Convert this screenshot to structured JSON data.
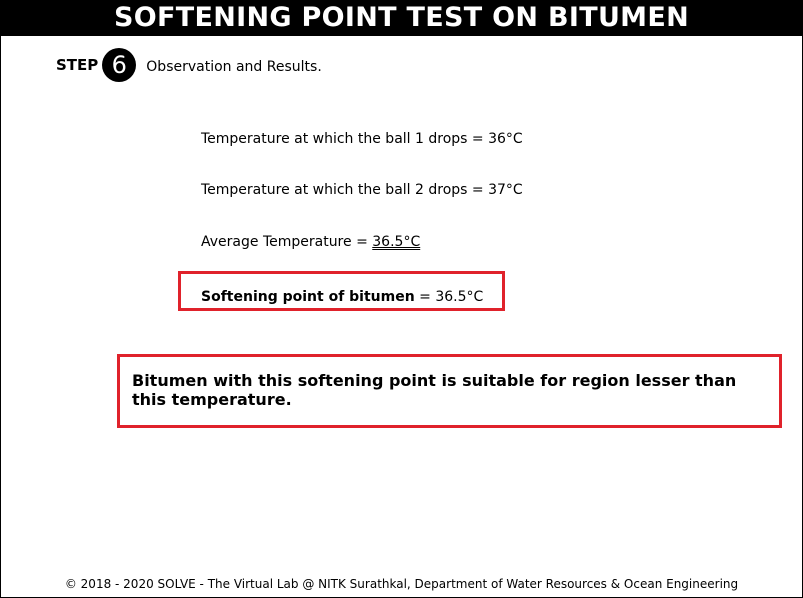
{
  "header": {
    "title": "SOFTENING POINT TEST ON BITUMEN"
  },
  "step": {
    "label": "STEP",
    "number": "6",
    "description": "Observation and Results."
  },
  "observations": {
    "ball1": "Temperature at which the ball 1 drops = 36°C",
    "ball2": "Temperature at which the ball 2 drops = 37°C",
    "average_label": "Average Temperature = ",
    "average_value": "36.5°C"
  },
  "result": {
    "label": "Softening point of bitumen",
    "value": " = 36.5°C"
  },
  "note": {
    "text": "Bitumen with this softening point is suitable for region lesser than this temperature."
  },
  "footer": {
    "text": "© 2018 - 2020 SOLVE - The Virtual Lab @ NITK Surathkal, Department of Water Resources & Ocean Engineering"
  },
  "colors": {
    "highlight_border": "#e0222b",
    "title_bar": "#000000"
  }
}
